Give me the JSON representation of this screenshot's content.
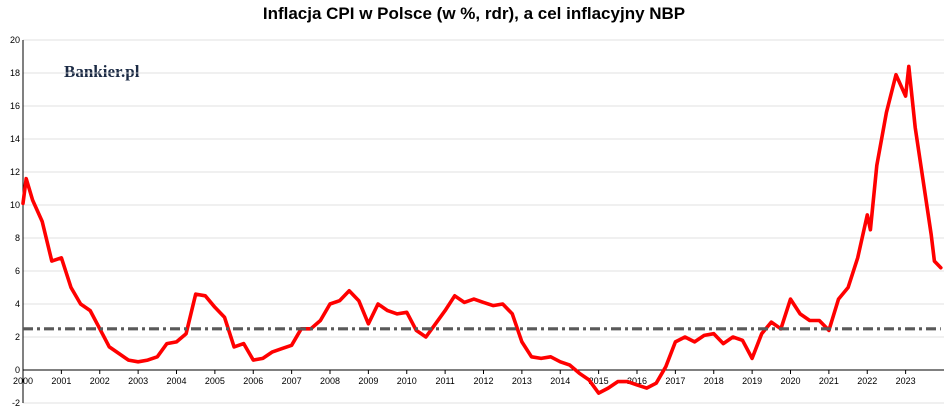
{
  "chart_data": {
    "type": "line",
    "title": "Inflacja CPI w Polsce (w %, rdr), a cel inflacyjny NBP",
    "watermark": "Bankier.pl",
    "xlabel": "",
    "ylabel": "",
    "ylim": [
      -2,
      20
    ],
    "y_ticks": [
      "-2",
      "0",
      "2",
      "4",
      "6",
      "8",
      "10",
      "12",
      "14",
      "16",
      "18",
      "20"
    ],
    "x_ticks": [
      "2000",
      "2001",
      "2002",
      "2003",
      "2004",
      "2005",
      "2006",
      "2007",
      "2008",
      "2009",
      "2010",
      "2011",
      "2012",
      "2013",
      "2014",
      "2015",
      "2016",
      "2017",
      "2018",
      "2019",
      "2020",
      "2021",
      "2022",
      "2023"
    ],
    "grid": "horizontal",
    "colors": {
      "cpi": "#ff0000",
      "target": "#595959",
      "grid": "#d9d9d9"
    },
    "series": [
      {
        "style": "solid",
        "x": [
          "2000-01",
          "2000-02",
          "2000-04",
          "2000-07",
          "2000-10",
          "2001-01",
          "2001-04",
          "2001-07",
          "2001-10",
          "2002-01",
          "2002-04",
          "2002-07",
          "2002-10",
          "2003-01",
          "2003-04",
          "2003-07",
          "2003-10",
          "2004-01",
          "2004-04",
          "2004-07",
          "2004-10",
          "2005-01",
          "2005-04",
          "2005-07",
          "2005-10",
          "2006-01",
          "2006-04",
          "2006-07",
          "2006-10",
          "2007-01",
          "2007-04",
          "2007-07",
          "2007-10",
          "2008-01",
          "2008-04",
          "2008-07",
          "2008-10",
          "2009-01",
          "2009-04",
          "2009-07",
          "2009-10",
          "2010-01",
          "2010-04",
          "2010-07",
          "2010-10",
          "2011-01",
          "2011-04",
          "2011-07",
          "2011-10",
          "2012-01",
          "2012-04",
          "2012-07",
          "2012-10",
          "2013-01",
          "2013-04",
          "2013-07",
          "2013-10",
          "2014-01",
          "2014-04",
          "2014-07",
          "2014-10",
          "2015-01",
          "2015-04",
          "2015-07",
          "2015-10",
          "2016-01",
          "2016-04",
          "2016-07",
          "2016-10",
          "2017-01",
          "2017-04",
          "2017-07",
          "2017-10",
          "2018-01",
          "2018-04",
          "2018-07",
          "2018-10",
          "2019-01",
          "2019-04",
          "2019-07",
          "2019-10",
          "2020-01",
          "2020-04",
          "2020-07",
          "2020-10",
          "2021-01",
          "2021-04",
          "2021-07",
          "2021-10",
          "2022-01",
          "2022-02",
          "2022-04",
          "2022-07",
          "2022-10",
          "2023-01",
          "2023-02",
          "2023-04",
          "2023-07",
          "2023-09",
          "2023-10",
          "2023-12"
        ],
        "y": [
          10.1,
          11.6,
          10.3,
          9.0,
          6.6,
          6.8,
          5.0,
          4.0,
          3.6,
          2.5,
          1.4,
          1.0,
          0.6,
          0.5,
          0.6,
          0.8,
          1.6,
          1.7,
          2.2,
          4.6,
          4.5,
          3.8,
          3.2,
          1.4,
          1.6,
          0.6,
          0.7,
          1.1,
          1.3,
          1.5,
          2.5,
          2.5,
          3.0,
          4.0,
          4.2,
          4.8,
          4.2,
          2.8,
          4.0,
          3.6,
          3.4,
          3.5,
          2.4,
          2.0,
          2.8,
          3.6,
          4.5,
          4.1,
          4.3,
          4.1,
          3.9,
          4.0,
          3.4,
          1.7,
          0.8,
          0.7,
          0.8,
          0.5,
          0.3,
          -0.2,
          -0.6,
          -1.4,
          -1.1,
          -0.7,
          -0.7,
          -0.9,
          -1.1,
          -0.8,
          0.2,
          1.7,
          2.0,
          1.7,
          2.1,
          2.2,
          1.6,
          2.0,
          1.8,
          0.7,
          2.2,
          2.9,
          2.5,
          4.3,
          3.4,
          3.0,
          3.0,
          2.4,
          4.3,
          5.0,
          6.8,
          9.4,
          8.5,
          12.4,
          15.6,
          17.9,
          16.6,
          18.4,
          14.7,
          10.8,
          8.2,
          6.6,
          6.2
        ]
      },
      {
        "style": "dash-dot",
        "x": [
          "2000-01",
          "2023-12"
        ],
        "y": [
          2.5,
          2.5
        ]
      }
    ]
  }
}
